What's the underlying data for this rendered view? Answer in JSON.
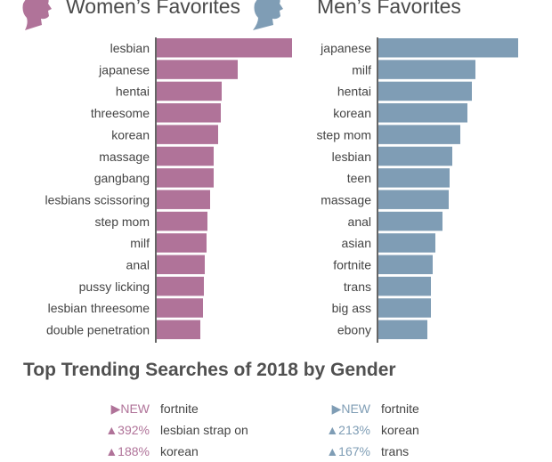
{
  "colors": {
    "women": "#b07399",
    "men": "#7f9db5",
    "axis": "#666666"
  },
  "women_header": "Women’s Favorites",
  "men_header": "Men’s Favorites",
  "chart_data": [
    {
      "type": "bar",
      "orientation": "horizontal",
      "title": "Women’s Favorites",
      "value_units": "relative bar length (no axis shown)",
      "categories": [
        "lesbian",
        "japanese",
        "hentai",
        "threesome",
        "korean",
        "massage",
        "gangbang",
        "lesbians scissoring",
        "step mom",
        "milf",
        "anal",
        "pussy licking",
        "lesbian threesome",
        "double penetration"
      ],
      "values": [
        152,
        91,
        73,
        72,
        69,
        64,
        64,
        60,
        57,
        56,
        54,
        53,
        52,
        49
      ]
    },
    {
      "type": "bar",
      "orientation": "horizontal",
      "title": "Men’s Favorites",
      "value_units": "relative bar length (no axis shown)",
      "categories": [
        "japanese",
        "milf",
        "hentai",
        "korean",
        "step mom",
        "lesbian",
        "teen",
        "massage",
        "anal",
        "asian",
        "fortnite",
        "trans",
        "big ass",
        "ebony"
      ],
      "values": [
        157,
        109,
        105,
        100,
        92,
        83,
        80,
        79,
        72,
        64,
        61,
        59,
        59,
        55
      ]
    }
  ],
  "trending": {
    "title": "Top Trending Searches of 2018 by Gender",
    "women": [
      {
        "change": "▶NEW",
        "term": "fortnite"
      },
      {
        "change": "▲392%",
        "term": "lesbian strap on"
      },
      {
        "change": "▲188%",
        "term": "korean"
      }
    ],
    "men": [
      {
        "change": "▶NEW",
        "term": "fortnite"
      },
      {
        "change": "▲213%",
        "term": "korean"
      },
      {
        "change": "▲167%",
        "term": "trans"
      }
    ]
  }
}
